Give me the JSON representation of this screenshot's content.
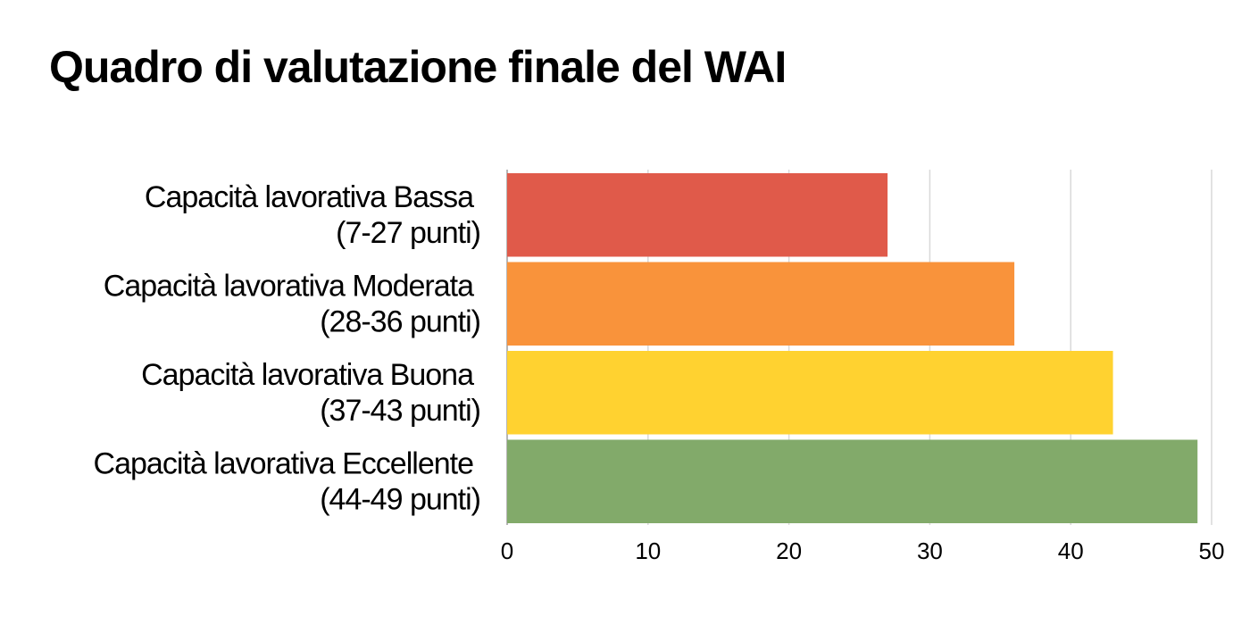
{
  "chart_data": {
    "type": "bar",
    "orientation": "horizontal",
    "title": "Quadro di valutazione finale del WAI",
    "xlabel": "",
    "ylabel": "",
    "categories": [
      {
        "line1": "Capacità lavorativa Bassa",
        "line2": "(7-27 punti)"
      },
      {
        "line1": "Capacità lavorativa Moderata",
        "line2": "(28-36 punti)"
      },
      {
        "line1": "Capacità lavorativa Buona",
        "line2": "(37-43 punti)"
      },
      {
        "line1": "Capacità lavorativa Eccellente",
        "line2": "(44-49 punti)"
      }
    ],
    "values": [
      27,
      36,
      43,
      49
    ],
    "colors": [
      "#e05a4a",
      "#f9933b",
      "#ffd230",
      "#82aa6a"
    ],
    "xlim": [
      0,
      50
    ],
    "xticks": [
      0,
      10,
      20,
      30,
      40,
      50
    ],
    "grid": true,
    "legend": "none"
  }
}
